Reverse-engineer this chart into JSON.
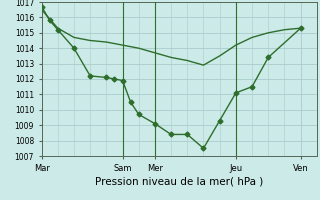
{
  "background_color": "#cceae7",
  "grid_color": "#aacccc",
  "line_color": "#2d6e2d",
  "xlabel": "Pression niveau de la mer( hPa )",
  "xlabel_fontsize": 7.5,
  "ylim": [
    1007,
    1017
  ],
  "yticks": [
    1007,
    1008,
    1009,
    1010,
    1011,
    1012,
    1013,
    1014,
    1015,
    1016,
    1017
  ],
  "xtick_labels": [
    "Mar",
    "Sam",
    "Mer",
    "Jeu",
    "Ven"
  ],
  "xtick_positions": [
    0,
    60,
    84,
    144,
    192
  ],
  "total_hours": 204,
  "line1_x": [
    0,
    6,
    12,
    24,
    36,
    48,
    54,
    60,
    66,
    72,
    84,
    96,
    108,
    120,
    132,
    144,
    156,
    168,
    192
  ],
  "line1_y": [
    1016.7,
    1015.8,
    1015.2,
    1014.0,
    1012.2,
    1012.1,
    1012.0,
    1011.9,
    1010.5,
    1009.7,
    1009.1,
    1008.4,
    1008.4,
    1007.5,
    1009.3,
    1011.1,
    1011.5,
    1013.4,
    1015.3
  ],
  "line2_x": [
    0,
    12,
    24,
    36,
    48,
    60,
    72,
    84,
    96,
    108,
    120,
    132,
    144,
    156,
    168,
    180,
    192
  ],
  "line2_y": [
    1016.5,
    1015.3,
    1014.7,
    1014.5,
    1014.4,
    1014.2,
    1014.0,
    1013.7,
    1013.4,
    1013.2,
    1012.9,
    1013.5,
    1014.2,
    1014.7,
    1015.0,
    1015.2,
    1015.3
  ],
  "vline_positions": [
    60,
    84,
    144
  ],
  "marker_size": 2.5,
  "linewidth": 1.0
}
